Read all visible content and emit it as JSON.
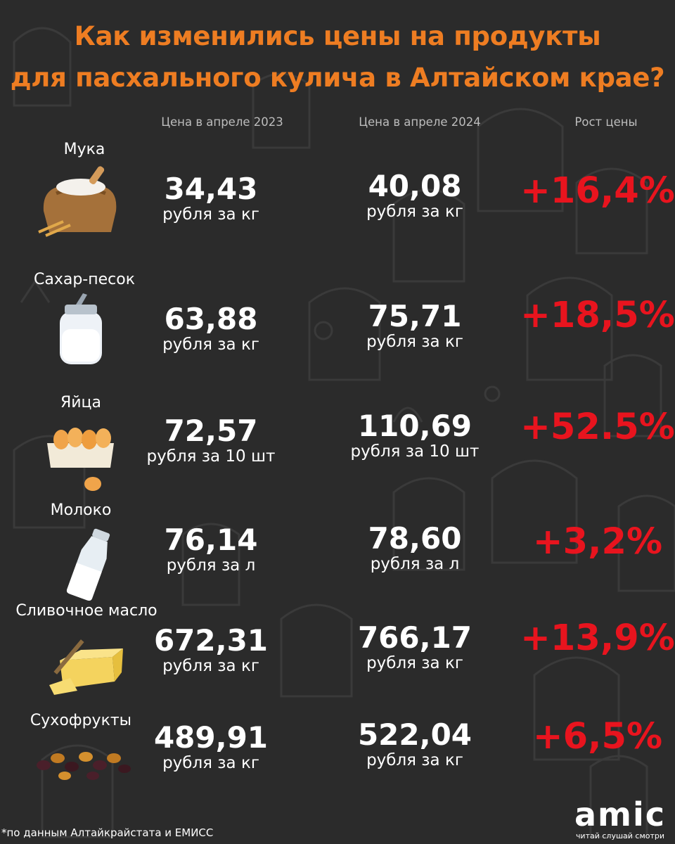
{
  "title_line1": "Как изменились цены на продукты",
  "title_line2": "для пасхального кулича в Алтайском крае?",
  "columns": [
    "Цена в апреле 2023",
    "Цена в апреле 2024",
    "Рост цены"
  ],
  "rows": [
    {
      "name": "Мука",
      "icon": "flour-sack-icon",
      "price_2023": "34,43",
      "unit_2023": "рубля за кг",
      "price_2024": "40,08",
      "unit_2024": "рубля за кг",
      "growth": "+16,4%"
    },
    {
      "name": "Сахар-песок",
      "icon": "sugar-jar-icon",
      "price_2023": "63,88",
      "unit_2023": "рубля за кг",
      "price_2024": "75,71",
      "unit_2024": "рубля за кг",
      "growth": "+18,5%"
    },
    {
      "name": "Яйца",
      "icon": "eggs-tray-icon",
      "price_2023": "72,57",
      "unit_2023": "рубля за 10 шт",
      "price_2024": "110,69",
      "unit_2024": "рубля за 10 шт",
      "growth": "+52.5%"
    },
    {
      "name": "Молоко",
      "icon": "milk-bottle-icon",
      "price_2023": "76,14",
      "unit_2023": "рубля за л",
      "price_2024": "78,60",
      "unit_2024": "рубля за л",
      "growth": "+3,2%"
    },
    {
      "name": "Сливочное масло",
      "icon": "butter-icon",
      "price_2023": "672,31",
      "unit_2023": "рубля за кг",
      "price_2024": "766,17",
      "unit_2024": "рубля за кг",
      "growth": "+13,9%"
    },
    {
      "name": "Сухофрукты",
      "icon": "dried-fruits-icon",
      "price_2023": "489,91",
      "unit_2023": "рубля за кг",
      "price_2024": "522,04",
      "unit_2024": "рубля за кг",
      "growth": "+6,5%"
    }
  ],
  "footnote": "*по данным Алтайкрайстата и ЕМИСС",
  "logo": {
    "mark": "amic",
    "tagline": "читай слушай смотри"
  },
  "colors": {
    "background": "#2b2b2b",
    "title": "#ee7d22",
    "growth": "#e8141e",
    "header": "#bdbdbd"
  },
  "chart_data": {
    "type": "table",
    "title": "Как изменились цены на продукты для пасхального кулича в Алтайском крае?",
    "columns": [
      "Цена в апреле 2023",
      "Цена в апреле 2024",
      "Рост цены"
    ],
    "categories": [
      "Мука",
      "Сахар-песок",
      "Яйца",
      "Молоко",
      "Сливочное масло",
      "Сухофрукты"
    ],
    "series": [
      {
        "name": "Цена в апреле 2023",
        "values": [
          34.43,
          63.88,
          72.57,
          76.14,
          672.31,
          489.91
        ]
      },
      {
        "name": "Цена в апреле 2024",
        "values": [
          40.08,
          75.71,
          110.69,
          78.6,
          766.17,
          522.04
        ]
      },
      {
        "name": "Рост цены",
        "values": [
          16.4,
          18.5,
          52.5,
          3.2,
          13.9,
          6.5
        ]
      }
    ]
  }
}
